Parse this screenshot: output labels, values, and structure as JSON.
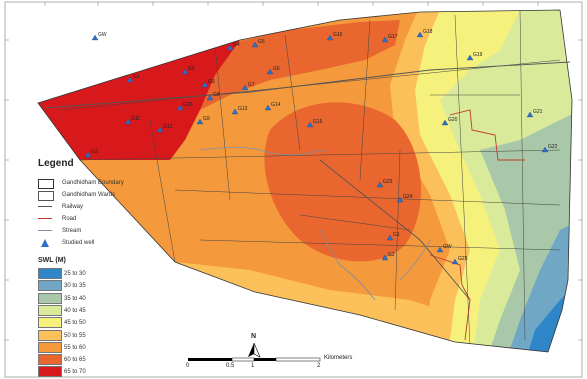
{
  "legend": {
    "title": "Legend",
    "items": [
      {
        "label": "Gandhidham Boundary",
        "symbol": "boundary-box"
      },
      {
        "label": "Gandhidham Wards",
        "symbol": "wards-box"
      },
      {
        "label": "Railway",
        "symbol": "railway-line"
      },
      {
        "label": "Road",
        "symbol": "road-line",
        "color": "#c0392b"
      },
      {
        "label": "Stream",
        "symbol": "stream-line",
        "color": "#7f8fa6"
      },
      {
        "label": "Studied well",
        "symbol": "triangle-icon",
        "color": "#2f6fc5"
      }
    ]
  },
  "swl": {
    "title": "SWL (M)",
    "classes": [
      {
        "label": "25 to 30",
        "color": "#2e86c9"
      },
      {
        "label": "30 to 35",
        "color": "#6fa7c4"
      },
      {
        "label": "35 to 40",
        "color": "#a8c8a9"
      },
      {
        "label": "40 to 45",
        "color": "#d9eb9a"
      },
      {
        "label": "45 to 50",
        "color": "#f6f07d"
      },
      {
        "label": "50 to 55",
        "color": "#fbc05a"
      },
      {
        "label": "55 to 60",
        "color": "#f49a3c"
      },
      {
        "label": "60 to 65",
        "color": "#e9662e"
      },
      {
        "label": "65 to 70",
        "color": "#d7191c"
      }
    ]
  },
  "scale_bar": {
    "ticks": [
      "0",
      "0.5",
      "1",
      "2"
    ],
    "unit": "Kilometers"
  },
  "north_arrow": {
    "label": "N"
  },
  "wells": [
    "GW",
    "G1",
    "G2",
    "G3",
    "G4",
    "G5",
    "G6",
    "G7",
    "G8",
    "G9",
    "G10",
    "G11",
    "G12",
    "G13",
    "G14",
    "G15",
    "G16",
    "G17",
    "G18",
    "G19",
    "G20",
    "G21",
    "G22",
    "G23",
    "G24",
    "G25"
  ]
}
